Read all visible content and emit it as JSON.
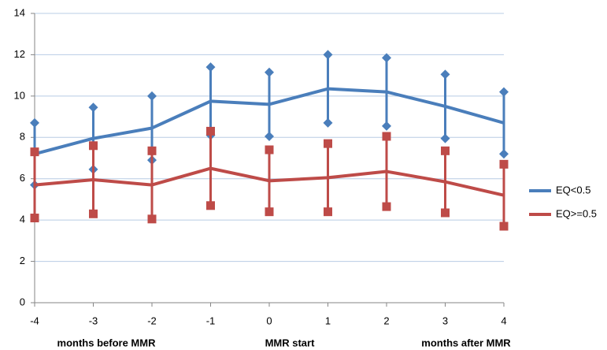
{
  "chart_data": {
    "type": "line",
    "x": [
      -4,
      -3,
      -2,
      -1,
      0,
      1,
      2,
      3,
      4
    ],
    "series": [
      {
        "name": "EQ<0.5",
        "color": "#4a7ebb",
        "marker": "diamond",
        "values": [
          7.2,
          7.95,
          8.45,
          9.75,
          9.6,
          10.35,
          10.2,
          9.5,
          8.7
        ],
        "errors": [
          1.5,
          1.5,
          1.55,
          1.65,
          1.55,
          1.65,
          1.65,
          1.55,
          1.5
        ]
      },
      {
        "name": "EQ>=0.5",
        "color": "#be4b48",
        "marker": "square",
        "values": [
          5.7,
          5.95,
          5.7,
          6.5,
          5.9,
          6.05,
          6.35,
          5.85,
          5.2
        ],
        "errors": [
          1.6,
          1.65,
          1.65,
          1.8,
          1.5,
          1.65,
          1.7,
          1.5,
          1.5
        ]
      }
    ],
    "xlim": [
      -4,
      4
    ],
    "xticks": [
      -4,
      -3,
      -2,
      -1,
      0,
      1,
      2,
      3,
      4
    ],
    "ylim": [
      0,
      14
    ],
    "yticks": [
      0,
      2,
      4,
      6,
      8,
      10,
      12,
      14
    ],
    "grid": true,
    "legend": "right",
    "annotations": [
      "months before MMR",
      "MMR start",
      "months after MMR"
    ]
  }
}
